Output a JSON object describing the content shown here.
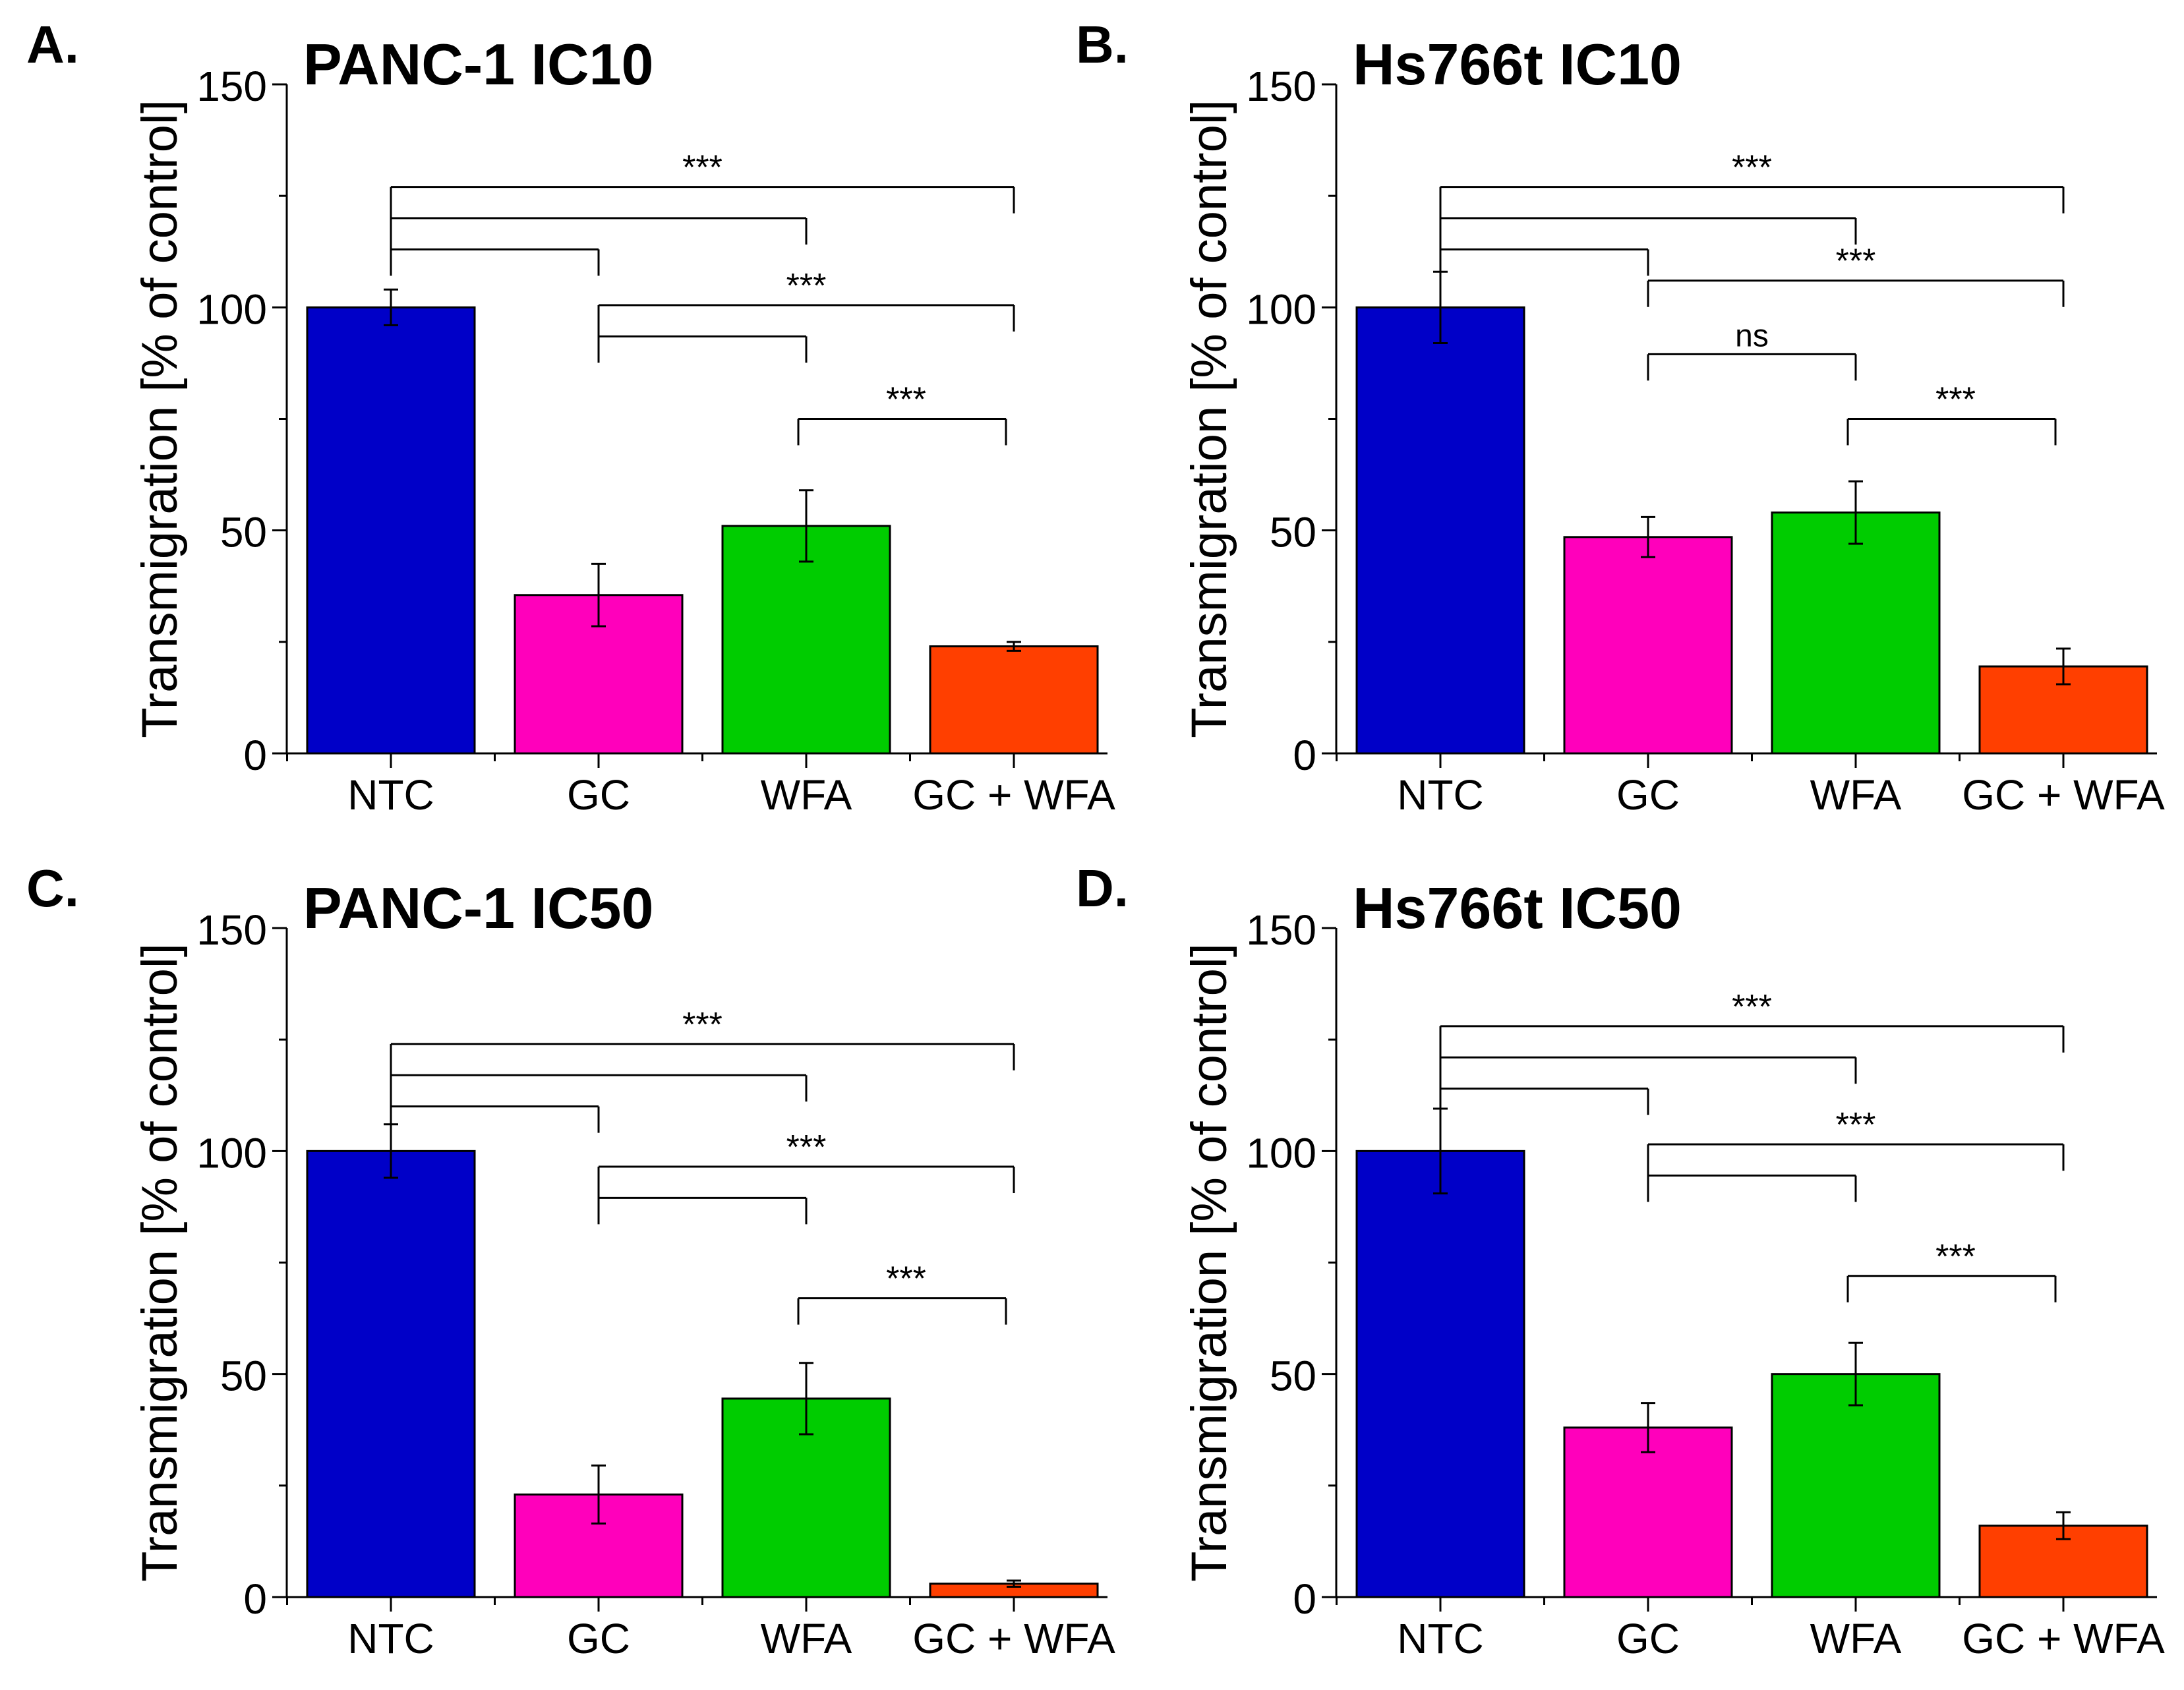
{
  "colors": {
    "NTC": "#0000c8",
    "GC": "#ff00bb",
    "WFA": "#00cc00",
    "GC + WFA": "#ff3f00",
    "axis": "#000000"
  },
  "chart_data": [
    {
      "panel": "A.",
      "title": "PANC-1 IC10",
      "type": "bar",
      "categories": [
        "NTC",
        "GC",
        "WFA",
        "GC + WFA"
      ],
      "values": [
        100,
        35.5,
        51,
        24
      ],
      "errors": [
        4,
        7,
        8,
        1
      ],
      "ylabel": "Transmigration [% of control]",
      "ylim": [
        0,
        150
      ],
      "yticks": [
        0,
        50,
        100,
        150
      ],
      "brackets": [
        {
          "from": 0,
          "to": [
            1,
            2,
            3
          ],
          "y": 127,
          "label": "***"
        },
        {
          "from": 1,
          "to": [
            2,
            3
          ],
          "y": 100.5,
          "label": "***"
        },
        {
          "from": 2,
          "to": [
            3
          ],
          "y": 75,
          "label": "***"
        }
      ]
    },
    {
      "panel": "B.",
      "title": "Hs766t IC10",
      "type": "bar",
      "categories": [
        "NTC",
        "GC",
        "WFA",
        "GC + WFA"
      ],
      "values": [
        100,
        48.5,
        54,
        19.5
      ],
      "errors": [
        8,
        4.5,
        7,
        4
      ],
      "ylabel": "Transmigration [% of control]",
      "ylim": [
        0,
        150
      ],
      "yticks": [
        0,
        50,
        100,
        150
      ],
      "brackets": [
        {
          "from": 0,
          "to": [
            1,
            2,
            3
          ],
          "y": 127,
          "label": "***"
        },
        {
          "from": 1,
          "to": [
            3
          ],
          "y": 106,
          "label": "***"
        },
        {
          "from": 1,
          "to": [
            2
          ],
          "y": 89.5,
          "label": "ns"
        },
        {
          "from": 2,
          "to": [
            3
          ],
          "y": 75,
          "label": "***"
        }
      ]
    },
    {
      "panel": "C.",
      "title": "PANC-1 IC50",
      "type": "bar",
      "categories": [
        "NTC",
        "GC",
        "WFA",
        "GC + WFA"
      ],
      "values": [
        100,
        23,
        44.5,
        3
      ],
      "errors": [
        6,
        6.5,
        8,
        0.7
      ],
      "ylabel": "Transmigration [% of control]",
      "ylim": [
        0,
        150
      ],
      "yticks": [
        0,
        50,
        100,
        150
      ],
      "brackets": [
        {
          "from": 0,
          "to": [
            1,
            2,
            3
          ],
          "y": 124,
          "label": "***"
        },
        {
          "from": 1,
          "to": [
            2,
            3
          ],
          "y": 96.5,
          "label": "***"
        },
        {
          "from": 2,
          "to": [
            3
          ],
          "y": 67,
          "label": "***"
        }
      ]
    },
    {
      "panel": "D.",
      "title": "Hs766t IC50",
      "type": "bar",
      "categories": [
        "NTC",
        "GC",
        "WFA",
        "GC + WFA"
      ],
      "values": [
        100,
        38,
        50,
        16
      ],
      "errors": [
        9.5,
        5.5,
        7,
        3
      ],
      "ylabel": "Transmigration [% of control]",
      "ylim": [
        0,
        150
      ],
      "yticks": [
        0,
        50,
        100,
        150
      ],
      "brackets": [
        {
          "from": 0,
          "to": [
            1,
            2,
            3
          ],
          "y": 128,
          "label": "***"
        },
        {
          "from": 1,
          "to": [
            2,
            3
          ],
          "y": 101.5,
          "label": "***"
        },
        {
          "from": 2,
          "to": [
            3
          ],
          "y": 72,
          "label": "***"
        }
      ]
    }
  ]
}
